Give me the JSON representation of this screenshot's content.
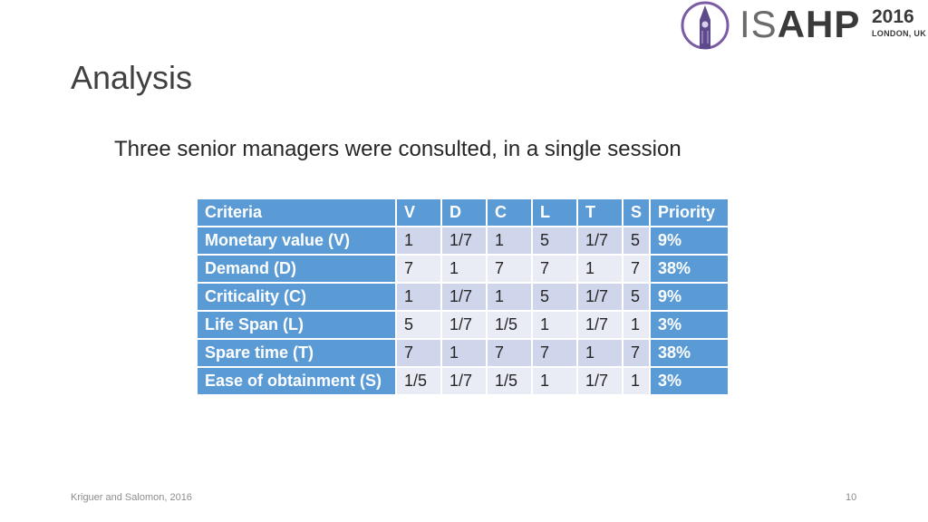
{
  "logo": {
    "text_light": "IS",
    "text_bold": "AHP",
    "year": "2016",
    "city": "LONDON, UK"
  },
  "title": "Analysis",
  "subtitle": "Three senior managers were consulted, in a single session",
  "table": {
    "headers": [
      "Criteria",
      "V",
      "D",
      "C",
      "L",
      "T",
      "S",
      "Priority"
    ],
    "rows": [
      {
        "label": "Monetary value (V)",
        "values": [
          "1",
          "1/7",
          "1",
          "5",
          "1/7",
          "5"
        ],
        "priority": "9%"
      },
      {
        "label": "Demand (D)",
        "values": [
          "7",
          "1",
          "7",
          "7",
          "1",
          "7"
        ],
        "priority": "38%"
      },
      {
        "label": "Criticality (C)",
        "values": [
          "1",
          "1/7",
          "1",
          "5",
          "1/7",
          "5"
        ],
        "priority": "9%"
      },
      {
        "label": "Life Span (L)",
        "values": [
          "5",
          "1/7",
          "1/5",
          "1",
          "1/7",
          "1"
        ],
        "priority": "3%"
      },
      {
        "label": "Spare time (T)",
        "values": [
          "7",
          "1",
          "7",
          "7",
          "1",
          "7"
        ],
        "priority": "38%"
      },
      {
        "label": "Ease of obtainment (S)",
        "values": [
          "1/5",
          "1/7",
          "1/5",
          "1",
          "1/7",
          "1"
        ],
        "priority": "3%"
      }
    ]
  },
  "footer": {
    "citation": "Kriguer and Salomon, 2016",
    "page_number": "10"
  },
  "colors": {
    "header_blue": "#5b9bd5",
    "row_dark": "#cfd5ea",
    "row_light": "#e9ebf5",
    "logo_purple": "#7b5aa6"
  },
  "icons": {
    "logo_mark": "big-ben-circle-icon"
  }
}
